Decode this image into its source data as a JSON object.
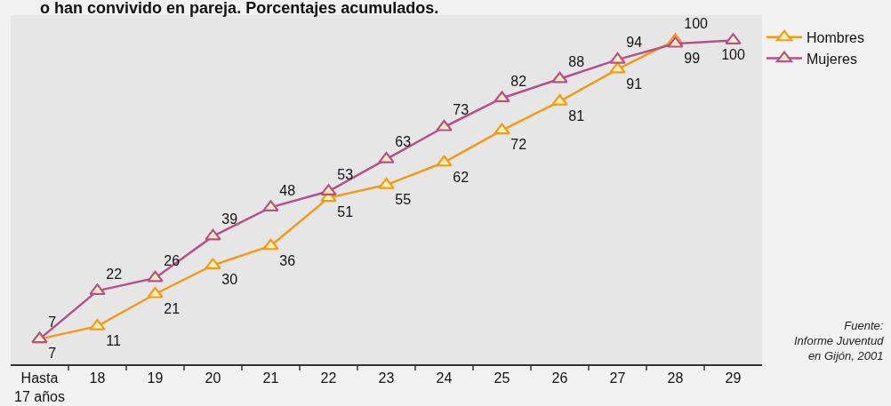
{
  "chart_data": {
    "type": "line",
    "title": "o han convivido en pareja. Porcentajes acumulados.",
    "categories": [
      "Hasta\n17 años",
      "18",
      "19",
      "20",
      "21",
      "22",
      "23",
      "24",
      "25",
      "26",
      "27",
      "28",
      "29"
    ],
    "series": [
      {
        "name": "Hombres",
        "color": "#f39a18",
        "values": [
          7,
          11,
          21,
          30,
          36,
          51,
          55,
          62,
          72,
          81,
          91,
          100,
          null
        ]
      },
      {
        "name": "Mujeres",
        "color": "#b5518a",
        "values": [
          7,
          22,
          26,
          39,
          48,
          53,
          63,
          73,
          82,
          88,
          94,
          99,
          100
        ]
      }
    ],
    "data_labels": true,
    "marker": "triangle",
    "line_style": "solid",
    "legend": "top right",
    "grid": false,
    "tick_labels": "x",
    "annotations": [
      "Fuente:\nInforme Juventud\nen Gijón, 2001"
    ]
  }
}
